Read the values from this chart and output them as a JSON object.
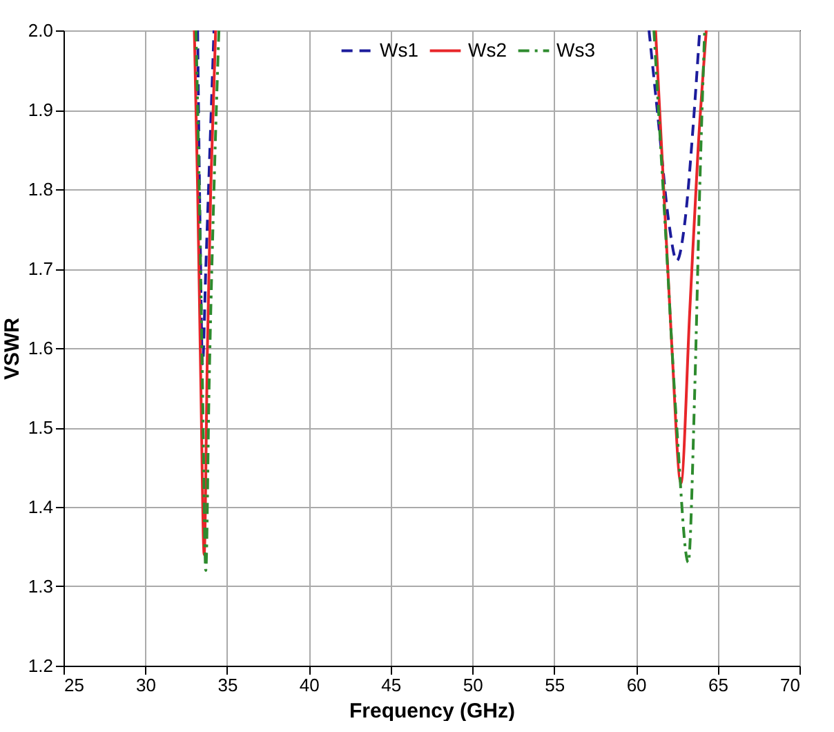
{
  "chart_data": {
    "type": "line",
    "xlabel": "Frequency (GHz)",
    "ylabel": "VSWR",
    "xlim": [
      25,
      70
    ],
    "xticks": [
      25,
      30,
      35,
      40,
      45,
      50,
      55,
      60,
      65,
      70
    ],
    "ylim": [
      1.2,
      2.0
    ],
    "yticks": [
      1.2,
      1.3,
      1.4,
      1.5,
      1.6,
      1.7,
      1.8,
      1.9,
      {
        "value": 2.0,
        "label": "2.0"
      }
    ],
    "grid": true,
    "legend": "top",
    "series": [
      {
        "name": "Ws1",
        "color": "#1c1c9c",
        "line_style": "dashed",
        "x": [
          33.2,
          33.35,
          33.5,
          33.7,
          33.95,
          34.2,
          47,
          60.8,
          61.4,
          62.0,
          62.5,
          63.0,
          63.5,
          63.9
        ],
        "values": [
          2.0,
          1.75,
          1.58,
          1.7,
          1.85,
          2.0,
          null,
          2.0,
          1.88,
          1.76,
          1.71,
          1.76,
          1.88,
          2.0
        ]
      },
      {
        "name": "Ws2",
        "color": "#e8262a",
        "line_style": "solid",
        "x": [
          33.0,
          33.2,
          33.4,
          33.6,
          33.8,
          34.0,
          34.3,
          47,
          61.2,
          61.7,
          62.2,
          62.75,
          63.3,
          63.8,
          64.3
        ],
        "values": [
          2.0,
          1.8,
          1.55,
          1.34,
          1.6,
          1.8,
          2.0,
          null,
          2.0,
          1.8,
          1.6,
          1.43,
          1.65,
          1.85,
          2.0
        ]
      },
      {
        "name": "Ws3",
        "color": "#2e8b2e",
        "line_style": "dashdot",
        "x": [
          33.1,
          33.3,
          33.5,
          33.7,
          33.9,
          34.2,
          34.5,
          47,
          61.1,
          61.8,
          62.5,
          63.2,
          63.6,
          63.9,
          64.2
        ],
        "values": [
          2.0,
          1.8,
          1.55,
          1.32,
          1.55,
          1.8,
          2.0,
          null,
          2.0,
          1.75,
          1.5,
          1.33,
          1.55,
          1.8,
          2.0
        ]
      }
    ]
  }
}
